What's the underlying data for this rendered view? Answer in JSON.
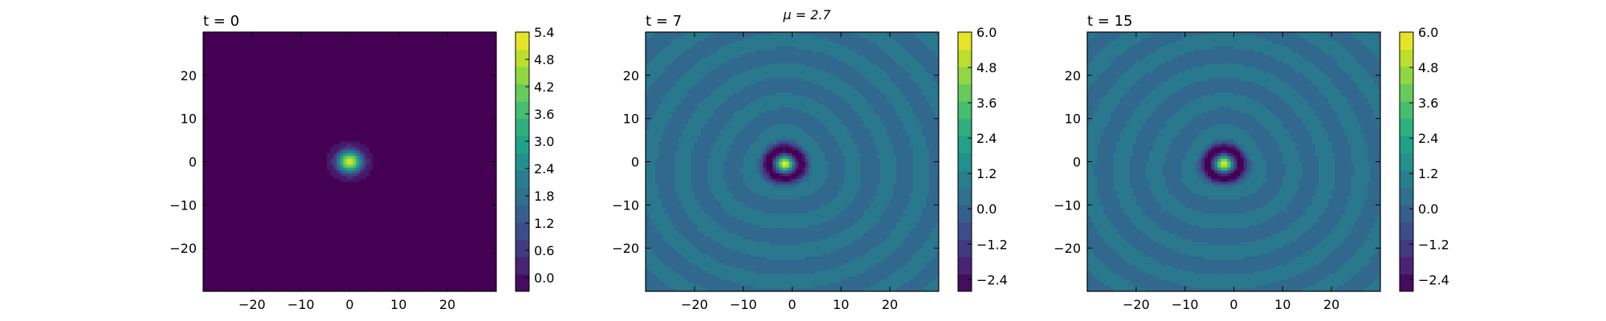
{
  "figure": {
    "suptitle": "μ = 2.7"
  },
  "chart_data": [
    {
      "type": "heatmap",
      "title": "t = 0",
      "xlabel": "",
      "ylabel": "",
      "xlim": [
        -30,
        30
      ],
      "ylim": [
        -30,
        30
      ],
      "xticks": [
        -20,
        -10,
        0,
        10,
        20
      ],
      "yticks": [
        -20,
        -10,
        0,
        10,
        20
      ],
      "colormap": "viridis",
      "colorbar": {
        "levels": [
          -0.3,
          5.4
        ],
        "ticks": [
          0.0,
          0.6,
          1.2,
          1.8,
          2.4,
          3.0,
          3.6,
          4.2,
          4.8,
          5.4
        ]
      },
      "field": {
        "background": -0.2,
        "peak": 5.4,
        "peak_at": [
          0,
          0
        ],
        "ring_amplitude": 0
      }
    },
    {
      "type": "heatmap",
      "title": "t = 7",
      "xlabel": "",
      "ylabel": "",
      "xlim": [
        -30,
        30
      ],
      "ylim": [
        -30,
        30
      ],
      "xticks": [
        -20,
        -10,
        0,
        10,
        20
      ],
      "yticks": [
        -20,
        -10,
        0,
        10,
        20
      ],
      "colormap": "viridis",
      "colorbar": {
        "levels": [
          -2.8,
          6.0
        ],
        "ticks": [
          -2.4,
          -1.2,
          0.0,
          1.2,
          2.4,
          3.6,
          4.8,
          6.0
        ]
      },
      "field": {
        "background": 0.4,
        "peak": 6.0,
        "peak_at": [
          -1.5,
          -0.5
        ],
        "trough": -2.8,
        "ring_amplitude": 0.5,
        "ring_spacing": 7
      }
    },
    {
      "type": "heatmap",
      "title": "t = 15",
      "xlabel": "",
      "ylabel": "",
      "xlim": [
        -30,
        30
      ],
      "ylim": [
        -30,
        30
      ],
      "xticks": [
        -20,
        -10,
        0,
        10,
        20
      ],
      "yticks": [
        -20,
        -10,
        0,
        10,
        20
      ],
      "colormap": "viridis",
      "colorbar": {
        "levels": [
          -2.8,
          6.0
        ],
        "ticks": [
          -2.4,
          -1.2,
          0.0,
          1.2,
          2.4,
          3.6,
          4.8,
          6.0
        ]
      },
      "field": {
        "background": 0.4,
        "peak": 6.0,
        "peak_at": [
          -2,
          -0.5
        ],
        "trough": -2.8,
        "ring_amplitude": 0.5,
        "ring_spacing": 7
      }
    }
  ]
}
